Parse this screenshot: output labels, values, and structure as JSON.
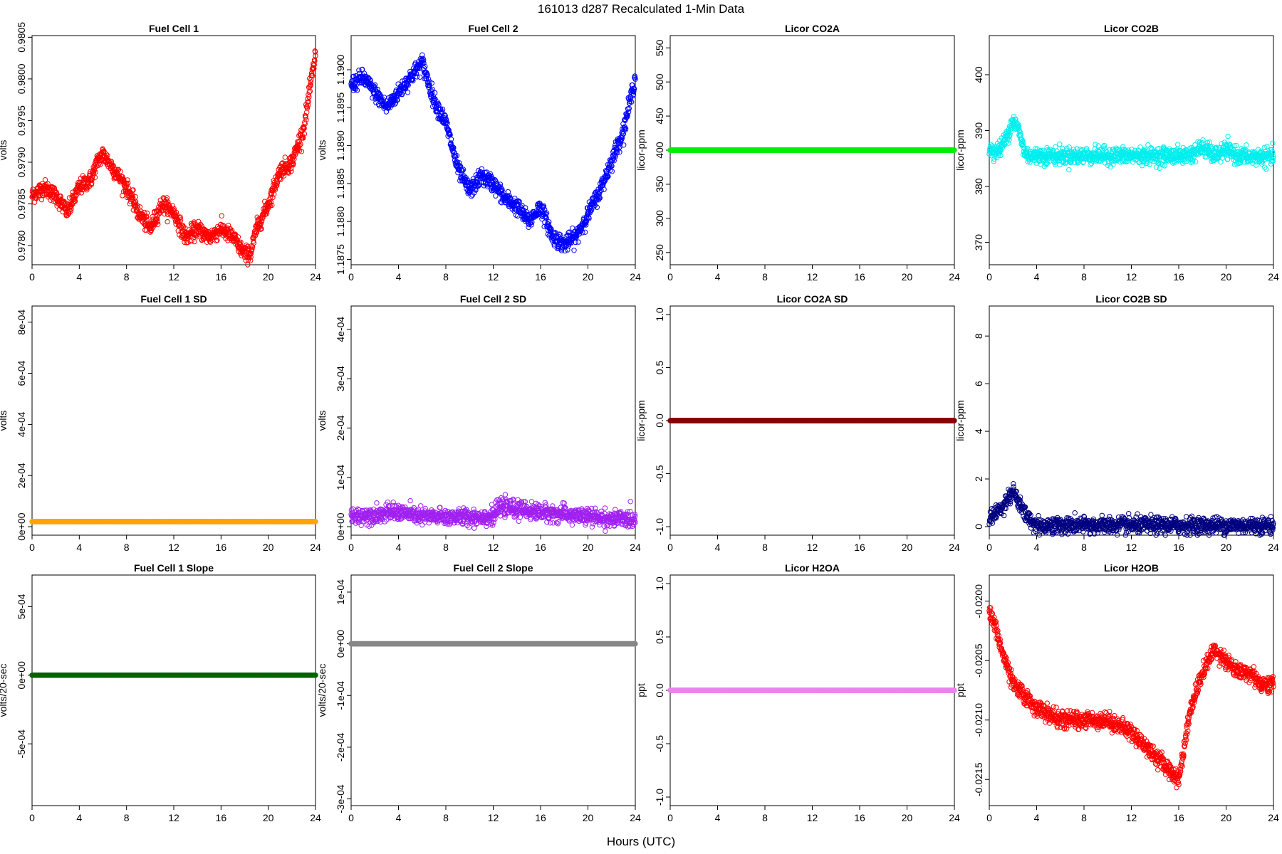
{
  "figure": {
    "title": "161013   d287   Recalculated 1-Min Data",
    "xlabel": "Hours (UTC)"
  },
  "chart_data": [
    {
      "id": "fc1",
      "type": "scatter",
      "title": "Fuel Cell 1",
      "ylabel": "volts",
      "color": "#ff0000",
      "xlim": [
        0,
        24
      ],
      "ylim": [
        0.97777,
        0.98052
      ],
      "xticks": [
        0,
        4,
        8,
        12,
        16,
        20,
        24
      ],
      "yticks": [
        0.978,
        0.9785,
        0.979,
        0.9795,
        0.98,
        0.9805
      ],
      "ytick_labels": [
        "0.9780",
        "0.9785",
        "0.9790",
        "0.9795",
        "0.9800",
        "0.9805"
      ],
      "series": [
        {
          "x": [
            0,
            1,
            2,
            3,
            4,
            5,
            5.5,
            6,
            7,
            8,
            9,
            10,
            11,
            12,
            13,
            14,
            15,
            16,
            17,
            18,
            18.5,
            19,
            20,
            21,
            22,
            23,
            24
          ],
          "y": [
            0.9786,
            0.9787,
            0.9786,
            0.9784,
            0.9787,
            0.9788,
            0.979,
            0.9791,
            0.9789,
            0.9787,
            0.9784,
            0.9782,
            0.9785,
            0.9784,
            0.9781,
            0.9782,
            0.9781,
            0.9782,
            0.9781,
            0.9779,
            0.9779,
            0.9782,
            0.9785,
            0.9789,
            0.979,
            0.9794,
            0.9803
          ]
        }
      ]
    },
    {
      "id": "fc2",
      "type": "scatter",
      "title": "Fuel Cell 2",
      "ylabel": "volts",
      "color": "#0000ff",
      "xlim": [
        0,
        24
      ],
      "ylim": [
        1.18743,
        1.19045
      ],
      "xticks": [
        0,
        4,
        8,
        12,
        16,
        20,
        24
      ],
      "yticks": [
        1.1875,
        1.188,
        1.1885,
        1.189,
        1.1895,
        1.19
      ],
      "ytick_labels": [
        "1.1875",
        "1.1880",
        "1.1885",
        "1.1890",
        "1.1895",
        "1.1900"
      ],
      "series": [
        {
          "x": [
            0,
            1,
            2,
            3,
            4,
            5,
            6,
            7,
            8,
            9,
            10,
            11,
            12,
            13,
            14,
            15,
            16,
            17,
            18,
            19,
            20,
            21,
            22,
            23,
            24
          ],
          "y": [
            1.1898,
            1.1899,
            1.1897,
            1.1895,
            1.1897,
            1.1899,
            1.1901,
            1.1896,
            1.1893,
            1.1887,
            1.1884,
            1.1886,
            1.1885,
            1.1883,
            1.1882,
            1.188,
            1.1882,
            1.1878,
            1.1877,
            1.1878,
            1.1881,
            1.1884,
            1.1888,
            1.1892,
            1.1899
          ]
        }
      ]
    },
    {
      "id": "co2a",
      "type": "scatter",
      "title": "Licor CO2A",
      "ylabel": "licor-ppm",
      "color": "#00ee00",
      "xlim": [
        0,
        24
      ],
      "ylim": [
        232,
        568
      ],
      "xticks": [
        0,
        4,
        8,
        12,
        16,
        20,
        24
      ],
      "yticks": [
        250,
        300,
        350,
        400,
        450,
        500,
        550
      ],
      "ytick_labels": [
        "250",
        "300",
        "350",
        "400",
        "450",
        "500",
        "550"
      ],
      "series": [
        {
          "x": [
            0,
            24
          ],
          "y": [
            400,
            400
          ]
        }
      ]
    },
    {
      "id": "co2b",
      "type": "scatter",
      "title": "Licor CO2B",
      "ylabel": "licor-ppm",
      "color": "#00eeee",
      "xlim": [
        0,
        24
      ],
      "ylim": [
        366,
        407
      ],
      "xticks": [
        0,
        4,
        8,
        12,
        16,
        20,
        24
      ],
      "yticks": [
        370,
        380,
        390,
        400
      ],
      "ytick_labels": [
        "370",
        "380",
        "390",
        "400"
      ],
      "series": [
        {
          "x": [
            0,
            0.5,
            1,
            1.5,
            2,
            2.5,
            3,
            3.5,
            4,
            6,
            8,
            10,
            12,
            14,
            16,
            17,
            18,
            19,
            20,
            21,
            22,
            23,
            24
          ],
          "y": [
            387,
            386,
            387,
            389,
            392,
            390,
            386,
            385.5,
            385.5,
            385.5,
            385.5,
            385.5,
            385.5,
            385.5,
            385.5,
            385.7,
            387,
            385.5,
            386.5,
            385.5,
            385.3,
            385.3,
            385.3
          ]
        }
      ]
    },
    {
      "id": "fc1sd",
      "type": "scatter",
      "title": "Fuel Cell 1 SD",
      "ylabel": "volts",
      "color": "#ffa500",
      "xlim": [
        0,
        24
      ],
      "ylim": [
        -3.32e-05,
        0.0008632
      ],
      "xticks": [
        0,
        4,
        8,
        12,
        16,
        20,
        24
      ],
      "yticks": [
        0,
        0.0002,
        0.0004,
        0.0006,
        0.0008
      ],
      "ytick_labels": [
        "0e+00",
        "2e-04",
        "4e-04",
        "6e-04",
        "8e-04"
      ],
      "series": [
        {
          "x": [
            0,
            24
          ],
          "y": [
            2e-05,
            2e-05
          ]
        }
      ]
    },
    {
      "id": "fc2sd",
      "type": "scatter",
      "title": "Fuel Cell 2 SD",
      "ylabel": "volts",
      "color": "#a020f0",
      "xlim": [
        0,
        24
      ],
      "ylim": [
        -1.72e-05,
        0.0004472
      ],
      "xticks": [
        0,
        4,
        8,
        12,
        16,
        20,
        24
      ],
      "yticks": [
        0,
        0.0001,
        0.0002,
        0.0003,
        0.0004
      ],
      "ytick_labels": [
        "0e+00",
        "1e-04",
        "2e-04",
        "3e-04",
        "4e-04"
      ],
      "series": [
        {
          "x": [
            0,
            2,
            4,
            6,
            8,
            10,
            12,
            12.5,
            14,
            16,
            18,
            20,
            22,
            24
          ],
          "y": [
            2e-05,
            2.5e-05,
            3e-05,
            2e-05,
            2e-05,
            2e-05,
            2e-05,
            4e-05,
            3.5e-05,
            3e-05,
            2.5e-05,
            2e-05,
            1.5e-05,
            1.5e-05
          ]
        }
      ]
    },
    {
      "id": "co2asd",
      "type": "scatter",
      "title": "Licor CO2A SD",
      "ylabel": "licor-ppm",
      "color": "#8b0000",
      "xlim": [
        0,
        24
      ],
      "ylim": [
        -1.08,
        1.08
      ],
      "xticks": [
        0,
        4,
        8,
        12,
        16,
        20,
        24
      ],
      "yticks": [
        -1,
        -0.5,
        0,
        0.5,
        1
      ],
      "ytick_labels": [
        "-1.0",
        "-0.5",
        "0.0",
        "0.5",
        "1.0"
      ],
      "series": [
        {
          "x": [
            0,
            24
          ],
          "y": [
            0,
            0
          ]
        }
      ]
    },
    {
      "id": "co2bsd",
      "type": "scatter",
      "title": "Licor CO2B SD",
      "ylabel": "licor-ppm",
      "color": "#000080",
      "xlim": [
        0,
        24
      ],
      "ylim": [
        -0.36,
        9.26
      ],
      "xticks": [
        0,
        4,
        8,
        12,
        16,
        20,
        24
      ],
      "yticks": [
        0,
        2,
        4,
        6,
        8
      ],
      "ytick_labels": [
        "0",
        "2",
        "4",
        "6",
        "8"
      ],
      "series": [
        {
          "x": [
            0,
            1,
            2,
            3,
            4,
            24
          ],
          "y": [
            0.3,
            0.8,
            1.5,
            0.5,
            0.05,
            0.05
          ]
        }
      ]
    },
    {
      "id": "fc1slope",
      "type": "scatter",
      "title": "Fuel Cell 1 Slope",
      "ylabel": "volts/20-sec",
      "color": "#006400",
      "xlim": [
        0,
        24
      ],
      "ylim": [
        -0.00095,
        0.00073
      ],
      "xticks": [
        0,
        4,
        8,
        12,
        16,
        20,
        24
      ],
      "yticks": [
        -0.0005,
        0,
        0.0005
      ],
      "ytick_labels": [
        "-5e-04",
        "0e+00",
        "5e-04"
      ],
      "series": [
        {
          "x": [
            0,
            24
          ],
          "y": [
            0,
            0
          ]
        }
      ]
    },
    {
      "id": "fc2slope",
      "type": "scatter",
      "title": "Fuel Cell 2 Slope",
      "ylabel": "volts/20-sec",
      "color": "#888888",
      "xlim": [
        0,
        24
      ],
      "ylim": [
        -0.000313,
        0.000133
      ],
      "xticks": [
        0,
        4,
        8,
        12,
        16,
        20,
        24
      ],
      "yticks": [
        -0.0003,
        -0.0002,
        -0.0001,
        0,
        0.0001
      ],
      "ytick_labels": [
        "-3e-04",
        "-2e-04",
        "-1e-04",
        "0e+00",
        "1e-04"
      ],
      "series": [
        {
          "x": [
            0,
            24
          ],
          "y": [
            0,
            0
          ]
        }
      ]
    },
    {
      "id": "h2oa",
      "type": "scatter",
      "title": "Licor H2OA",
      "ylabel": "ppt",
      "color": "#ee82ee",
      "xlim": [
        0,
        24
      ],
      "ylim": [
        -1.08,
        1.08
      ],
      "xticks": [
        0,
        4,
        8,
        12,
        16,
        20,
        24
      ],
      "yticks": [
        -1,
        -0.5,
        0,
        0.5,
        1
      ],
      "ytick_labels": [
        "-1.0",
        "-0.5",
        "0.0",
        "0.5",
        "1.0"
      ],
      "series": [
        {
          "x": [
            0,
            24
          ],
          "y": [
            0,
            0
          ]
        }
      ]
    },
    {
      "id": "h2ob",
      "type": "scatter",
      "title": "Licor H2OB",
      "ylabel": "ppt",
      "color": "#ff0000",
      "xlim": [
        0,
        24
      ],
      "ylim": [
        -0.02172,
        -0.01978
      ],
      "xticks": [
        0,
        4,
        8,
        12,
        16,
        20,
        24
      ],
      "yticks": [
        -0.0215,
        -0.021,
        -0.0205,
        -0.02
      ],
      "ytick_labels": [
        "-0.0215",
        "-0.0210",
        "-0.0205",
        "-0.0200"
      ],
      "series": [
        {
          "x": [
            0,
            0.5,
            1,
            2,
            3,
            4,
            6,
            8,
            10,
            12,
            14,
            15,
            16,
            17,
            18,
            19,
            20,
            21,
            22,
            23,
            24
          ],
          "y": [
            -0.0201,
            -0.0202,
            -0.0204,
            -0.0207,
            -0.0208,
            -0.0209,
            -0.021,
            -0.021,
            -0.021,
            -0.0211,
            -0.0213,
            -0.0214,
            -0.0215,
            -0.0209,
            -0.0206,
            -0.0204,
            -0.0205,
            -0.0206,
            -0.0206,
            -0.0207,
            -0.0207
          ]
        }
      ]
    }
  ]
}
